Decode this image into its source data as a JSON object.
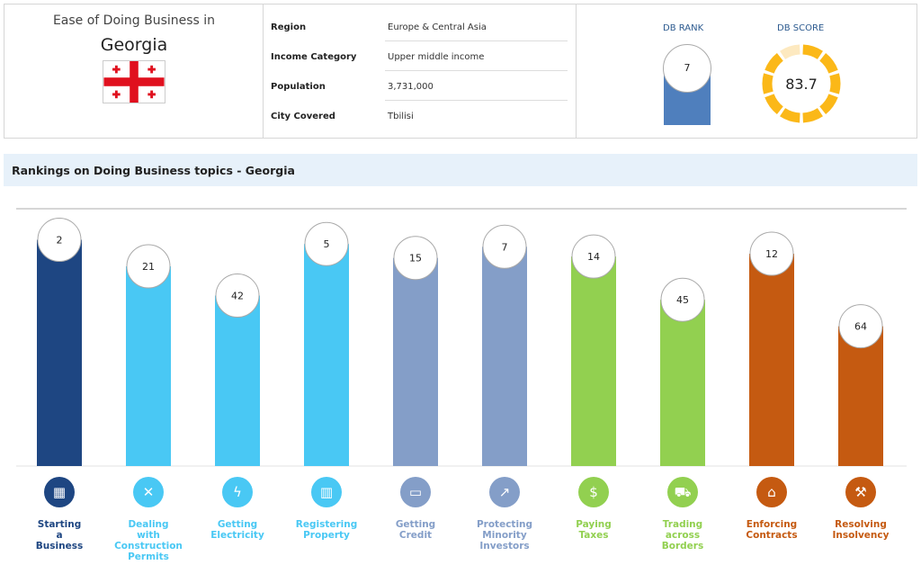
{
  "header": {
    "ease_title": "Ease of Doing Business in",
    "country": "Georgia",
    "flag_name": "georgia-flag"
  },
  "info": [
    {
      "key": "Region",
      "value": "Europe & Central Asia"
    },
    {
      "key": "Income Category",
      "value": "Upper middle income"
    },
    {
      "key": "Population",
      "value": "3,731,000"
    },
    {
      "key": "City Covered",
      "value": "Tbilisi"
    }
  ],
  "kpi": {
    "rank_label": "DB RANK",
    "rank_value": "7",
    "score_label": "DB SCORE",
    "score_value": "83.7",
    "score_fraction": 0.837
  },
  "section_title": "Rankings on Doing Business topics - Georgia",
  "colors": {
    "dark_blue": "#1e4682",
    "sky": "#49c8f4",
    "slate": "#849ec8",
    "green": "#92d050",
    "orange": "#c55a11",
    "rank_bar": "#4f7fbd",
    "score_ring": "#fbb818",
    "score_ring_rest": "#fde9c0"
  },
  "chart_data": {
    "type": "bar",
    "categories": [
      "Starting a Business",
      "Dealing with Construction Permits",
      "Getting Electricity",
      "Registering Property",
      "Getting Credit",
      "Protecting Minority Investors",
      "Paying Taxes",
      "Trading across Borders",
      "Enforcing Contracts",
      "Resolving Insolvency"
    ],
    "values": [
      2,
      21,
      42,
      5,
      15,
      7,
      14,
      45,
      12,
      64
    ],
    "bar_colors": [
      "#1e4682",
      "#49c8f4",
      "#49c8f4",
      "#49c8f4",
      "#849ec8",
      "#849ec8",
      "#92d050",
      "#92d050",
      "#c55a11",
      "#c55a11"
    ],
    "title": "",
    "xlabel": "",
    "ylabel": "",
    "grid": false,
    "legend": "none"
  },
  "topics": [
    {
      "label": "Starting\na\nBusiness",
      "icon": "business-building-icon",
      "glyph": "▦",
      "color": "#1e4682"
    },
    {
      "label": "Dealing\nwith\nConstruction\nPermits",
      "icon": "wrench-screwdriver-icon",
      "glyph": "✕",
      "color": "#49c8f4"
    },
    {
      "label": "Getting\nElectricity",
      "icon": "lightning-icon",
      "glyph": "ϟ",
      "color": "#49c8f4"
    },
    {
      "label": "Registering\nProperty",
      "icon": "property-building-icon",
      "glyph": "▥",
      "color": "#49c8f4"
    },
    {
      "label": "Getting\nCredit",
      "icon": "credit-card-icon",
      "glyph": "▭",
      "color": "#849ec8"
    },
    {
      "label": "Protecting\nMinority\nInvestors",
      "icon": "trend-chart-icon",
      "glyph": "↗",
      "color": "#849ec8"
    },
    {
      "label": "Paying\nTaxes",
      "icon": "money-icon",
      "glyph": "$",
      "color": "#92d050"
    },
    {
      "label": "Trading\nacross\nBorders",
      "icon": "truck-icon",
      "glyph": "⛟",
      "color": "#92d050"
    },
    {
      "label": "Enforcing\nContracts",
      "icon": "courthouse-icon",
      "glyph": "⌂",
      "color": "#c55a11"
    },
    {
      "label": "Resolving\nInsolvency",
      "icon": "gavel-icon",
      "glyph": "⚒",
      "color": "#c55a11"
    }
  ]
}
